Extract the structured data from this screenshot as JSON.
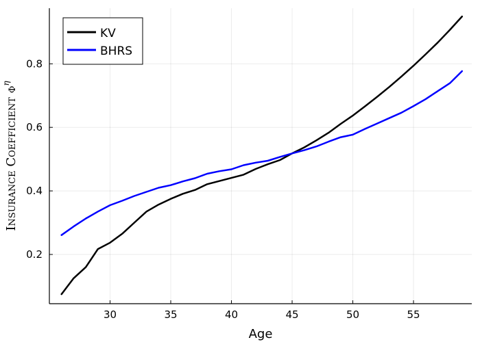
{
  "chart_data": {
    "type": "line",
    "xlabel": "Age",
    "ylabel": "Insurance Coefficient ϕ",
    "ylabel_superscript": "η",
    "xlim": [
      25.0,
      59.8
    ],
    "ylim": [
      0.045,
      0.975
    ],
    "xticks": [
      30,
      35,
      40,
      45,
      50,
      55
    ],
    "yticks": [
      0.2,
      0.4,
      0.6,
      0.8
    ],
    "xtick_labels": [
      "30",
      "35",
      "40",
      "45",
      "50",
      "55"
    ],
    "ytick_labels": [
      "0.2",
      "0.4",
      "0.6",
      "0.8"
    ],
    "grid": true,
    "legend_position": "top-left",
    "series": [
      {
        "name": "KV",
        "color": "#000000",
        "x": [
          26,
          27,
          28,
          29,
          30,
          31,
          32,
          33,
          34,
          35,
          36,
          37,
          38,
          39,
          40,
          41,
          42,
          43,
          44,
          45,
          46,
          47,
          48,
          49,
          50,
          51,
          52,
          53,
          54,
          55,
          56,
          57,
          58,
          59
        ],
        "values": [
          0.075,
          0.125,
          0.16,
          0.217,
          0.237,
          0.265,
          0.3,
          0.335,
          0.357,
          0.375,
          0.391,
          0.403,
          0.421,
          0.431,
          0.441,
          0.451,
          0.469,
          0.484,
          0.497,
          0.518,
          0.537,
          0.559,
          0.583,
          0.611,
          0.637,
          0.666,
          0.696,
          0.727,
          0.76,
          0.794,
          0.83,
          0.867,
          0.907,
          0.949
        ]
      },
      {
        "name": "BHRS",
        "color": "#0000ff",
        "x": [
          26,
          27,
          28,
          29,
          30,
          31,
          32,
          33,
          34,
          35,
          36,
          37,
          38,
          39,
          40,
          41,
          42,
          43,
          44,
          45,
          46,
          47,
          48,
          49,
          50,
          51,
          52,
          53,
          54,
          55,
          56,
          57,
          58,
          59
        ],
        "values": [
          0.261,
          0.288,
          0.313,
          0.335,
          0.355,
          0.369,
          0.384,
          0.397,
          0.41,
          0.418,
          0.43,
          0.44,
          0.454,
          0.462,
          0.468,
          0.481,
          0.489,
          0.495,
          0.507,
          0.518,
          0.528,
          0.54,
          0.555,
          0.569,
          0.577,
          0.595,
          0.612,
          0.629,
          0.646,
          0.667,
          0.689,
          0.714,
          0.739,
          0.777
        ]
      }
    ]
  }
}
